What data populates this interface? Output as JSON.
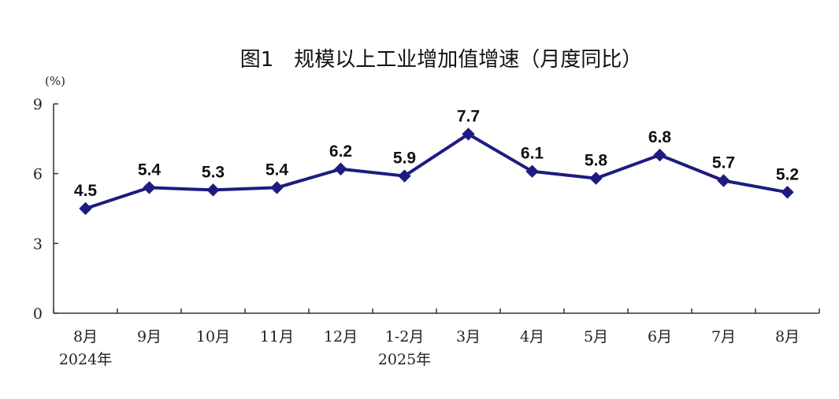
{
  "chart_data": {
    "type": "line",
    "title": "图1　规模以上工业增加值增速（月度同比）",
    "unit_label": "(%)",
    "categories": [
      "8月",
      "9月",
      "10月",
      "11月",
      "12月",
      "1-2月",
      "3月",
      "4月",
      "5月",
      "6月",
      "7月",
      "8月"
    ],
    "year_labels": [
      {
        "index": 0,
        "label": "2024年"
      },
      {
        "index": 5,
        "label": "2025年"
      }
    ],
    "series": [
      {
        "values": [
          4.5,
          5.4,
          5.3,
          5.4,
          6.2,
          5.9,
          7.7,
          6.1,
          5.8,
          6.8,
          5.7,
          5.2
        ]
      }
    ],
    "data_labels": [
      "4.5",
      "5.4",
      "5.3",
      "5.4",
      "6.2",
      "5.9",
      "7.7",
      "6.1",
      "5.8",
      "6.8",
      "5.7",
      "5.2"
    ],
    "yticks": [
      "0",
      "3",
      "6",
      "9"
    ],
    "ylim": [
      0,
      9
    ],
    "grid": false,
    "legend": "none",
    "line_color": "#1c1c80",
    "marker": "diamond"
  }
}
